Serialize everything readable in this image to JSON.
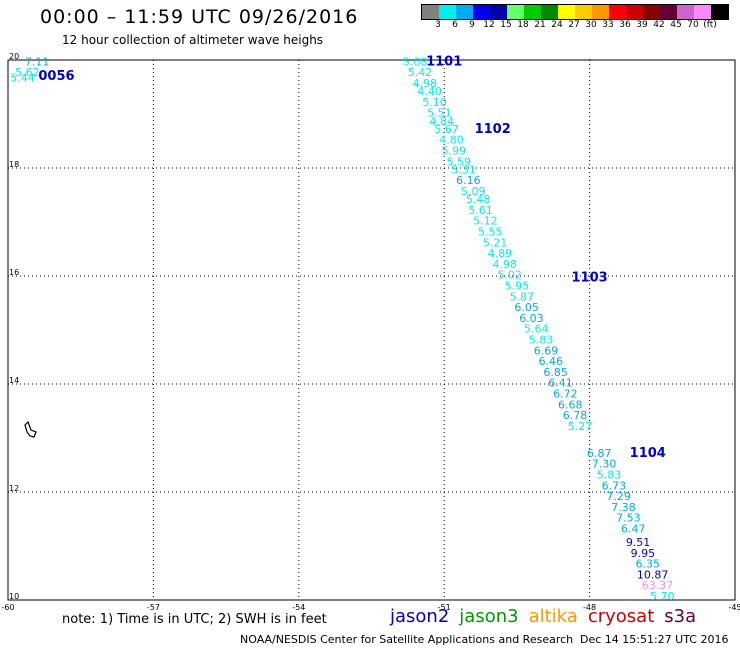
{
  "header": {
    "title": "00:00 – 11:59 UTC 09/26/2016",
    "subtitle": "12 hour collection of altimeter wave heighs"
  },
  "legend": {
    "colors": [
      "#808080",
      "#00eeee",
      "#00aaee",
      "#0000ee",
      "#0000aa",
      "#66ff66",
      "#00cc00",
      "#008800",
      "#ffff00",
      "#ffcc00",
      "#ff9900",
      "#ff0000",
      "#cc0000",
      "#880000",
      "#660033",
      "#cc66cc",
      "#ff88ff",
      "#000000"
    ],
    "labels": [
      "3",
      "6",
      "9",
      "12",
      "15",
      "18",
      "21",
      "24",
      "27",
      "30",
      "33",
      "36",
      "39",
      "42",
      "45",
      "70",
      "(ft)"
    ]
  },
  "map": {
    "x_ticks": [
      "-60",
      "-57",
      "-54",
      "-51",
      "-48",
      "-45"
    ],
    "y_ticks": [
      "20",
      "18",
      "16",
      "14",
      "12",
      "10"
    ],
    "lon_range": [
      -60,
      -45
    ],
    "lat_range": [
      10,
      20
    ],
    "grid": "dotted"
  },
  "chart_data": {
    "type": "scatter",
    "x_label": "",
    "y_label": "",
    "xlim": [
      -60,
      -45
    ],
    "ylim": [
      10,
      20
    ],
    "pass_labels": [
      {
        "name": "0056",
        "lon": -59.0,
        "lat": 19.63
      },
      {
        "name": "1101",
        "lon": -51.0,
        "lat": 19.9
      },
      {
        "name": "1102",
        "lon": -50.0,
        "lat": 18.65
      },
      {
        "name": "1103",
        "lon": -48.0,
        "lat": 15.9
      },
      {
        "name": "1104",
        "lon": -46.8,
        "lat": 12.65
      }
    ],
    "points": [
      {
        "lon": -59.4,
        "lat": 19.9,
        "value": "7.11",
        "color": "#00aaee"
      },
      {
        "lon": -59.6,
        "lat": 19.7,
        "value": "5.62",
        "color": "#00eeee"
      },
      {
        "lon": -59.7,
        "lat": 19.6,
        "value": "5.44",
        "color": "#00eeee"
      },
      {
        "lon": -51.6,
        "lat": 19.9,
        "value": "5.08",
        "color": "#00eeee"
      },
      {
        "lon": -51.5,
        "lat": 19.7,
        "value": "5.42",
        "color": "#00eeee"
      },
      {
        "lon": -51.4,
        "lat": 19.5,
        "value": "4.98",
        "color": "#00eeee"
      },
      {
        "lon": -51.3,
        "lat": 19.35,
        "value": "4.40",
        "color": "#00eeee"
      },
      {
        "lon": -51.2,
        "lat": 19.15,
        "value": "5.10",
        "color": "#00eeee"
      },
      {
        "lon": -51.1,
        "lat": 18.95,
        "value": "5.51",
        "color": "#00eeee"
      },
      {
        "lon": -51.05,
        "lat": 18.8,
        "value": "4.84",
        "color": "#00eeee"
      },
      {
        "lon": -50.95,
        "lat": 18.65,
        "value": "5.67",
        "color": "#00eeee"
      },
      {
        "lon": -50.85,
        "lat": 18.45,
        "value": "4.80",
        "color": "#00eeee"
      },
      {
        "lon": -50.8,
        "lat": 18.25,
        "value": "5.99",
        "color": "#00eeee"
      },
      {
        "lon": -50.7,
        "lat": 18.05,
        "value": "5.59",
        "color": "#00eeee"
      },
      {
        "lon": -50.6,
        "lat": 17.9,
        "value": "5.31",
        "color": "#00eeee"
      },
      {
        "lon": -50.5,
        "lat": 17.7,
        "value": "6.16",
        "color": "#00aaee"
      },
      {
        "lon": -50.4,
        "lat": 17.5,
        "value": "5.09",
        "color": "#00eeee"
      },
      {
        "lon": -50.3,
        "lat": 17.35,
        "value": "5.48",
        "color": "#00eeee"
      },
      {
        "lon": -50.25,
        "lat": 17.15,
        "value": "5.61",
        "color": "#00eeee"
      },
      {
        "lon": -50.15,
        "lat": 16.95,
        "value": "5.12",
        "color": "#00eeee"
      },
      {
        "lon": -50.05,
        "lat": 16.75,
        "value": "5.55",
        "color": "#00eeee"
      },
      {
        "lon": -49.95,
        "lat": 16.55,
        "value": "5.21",
        "color": "#00eeee"
      },
      {
        "lon": -49.85,
        "lat": 16.35,
        "value": "4.89",
        "color": "#00eeee"
      },
      {
        "lon": -49.75,
        "lat": 16.15,
        "value": "4.98",
        "color": "#00eeee"
      },
      {
        "lon": -49.65,
        "lat": 15.95,
        "value": "5.02",
        "color": "#00eeee"
      },
      {
        "lon": -49.5,
        "lat": 15.75,
        "value": "5.95",
        "color": "#00eeee"
      },
      {
        "lon": -49.4,
        "lat": 15.55,
        "value": "5.87",
        "color": "#00eeee"
      },
      {
        "lon": -49.3,
        "lat": 15.35,
        "value": "6.05",
        "color": "#00aaee"
      },
      {
        "lon": -49.2,
        "lat": 15.15,
        "value": "6.03",
        "color": "#00aaee"
      },
      {
        "lon": -49.1,
        "lat": 14.95,
        "value": "5.64",
        "color": "#00eeee"
      },
      {
        "lon": -49.0,
        "lat": 14.75,
        "value": "5.83",
        "color": "#00eeee"
      },
      {
        "lon": -48.9,
        "lat": 14.55,
        "value": "6.69",
        "color": "#00aaee"
      },
      {
        "lon": -48.8,
        "lat": 14.35,
        "value": "6.46",
        "color": "#00aaee"
      },
      {
        "lon": -48.7,
        "lat": 14.15,
        "value": "6.85",
        "color": "#00aaee"
      },
      {
        "lon": -48.6,
        "lat": 13.95,
        "value": "6.41",
        "color": "#00aaee"
      },
      {
        "lon": -48.5,
        "lat": 13.75,
        "value": "6.72",
        "color": "#00aaee"
      },
      {
        "lon": -48.4,
        "lat": 13.55,
        "value": "6.68",
        "color": "#00aaee"
      },
      {
        "lon": -48.3,
        "lat": 13.35,
        "value": "6.78",
        "color": "#00aaee"
      },
      {
        "lon": -48.2,
        "lat": 13.15,
        "value": "5.27",
        "color": "#00eeee"
      },
      {
        "lon": -47.8,
        "lat": 12.65,
        "value": "6.87",
        "color": "#00aaee"
      },
      {
        "lon": -47.7,
        "lat": 12.45,
        "value": "7.30",
        "color": "#00aaee"
      },
      {
        "lon": -47.6,
        "lat": 12.25,
        "value": "5.83",
        "color": "#00eeee"
      },
      {
        "lon": -47.5,
        "lat": 12.05,
        "value": "6.73",
        "color": "#00aaee"
      },
      {
        "lon": -47.4,
        "lat": 11.85,
        "value": "7.29",
        "color": "#00aaee"
      },
      {
        "lon": -47.3,
        "lat": 11.65,
        "value": "7.38",
        "color": "#00aaee"
      },
      {
        "lon": -47.2,
        "lat": 11.45,
        "value": "7.53",
        "color": "#00aaee"
      },
      {
        "lon": -47.1,
        "lat": 11.25,
        "value": "6.47",
        "color": "#00aaee"
      },
      {
        "lon": -47.0,
        "lat": 11.0,
        "value": "9.51",
        "color": "#0000ee"
      },
      {
        "lon": -46.9,
        "lat": 10.8,
        "value": "9.95",
        "color": "#0000ee"
      },
      {
        "lon": -46.8,
        "lat": 10.6,
        "value": "6.35",
        "color": "#00aaee"
      },
      {
        "lon": -46.7,
        "lat": 10.4,
        "value": "10.87",
        "color": "#0000aa"
      },
      {
        "lon": -46.6,
        "lat": 10.2,
        "value": "63.37",
        "color": "#ff88ff"
      },
      {
        "lon": -46.5,
        "lat": 10.0,
        "value": "5.70",
        "color": "#00eeee"
      }
    ]
  },
  "footer": {
    "note": "note: 1) Time is in UTC; 2) SWH is in feet",
    "satellites": [
      {
        "name": "jason2",
        "color": "#0000cc"
      },
      {
        "name": "jason3",
        "color": "#009900"
      },
      {
        "name": "altika",
        "color": "#ff9900"
      },
      {
        "name": "cryosat",
        "color": "#cc0000"
      },
      {
        "name": "s3a",
        "color": "#660033"
      }
    ],
    "credit": "NOAA/NESDIS Center for Satellite Applications and Research",
    "timestamp": "Dec 14 15:51:27 UTC 2016"
  }
}
